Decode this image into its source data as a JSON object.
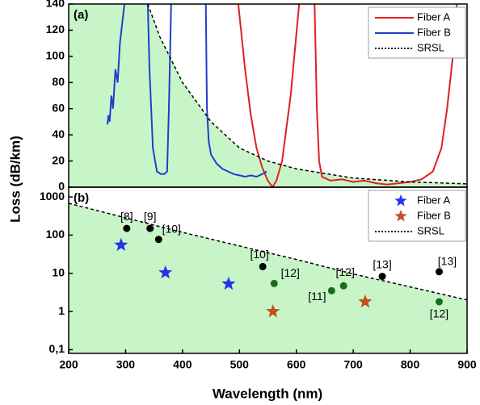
{
  "chart_data": [
    {
      "type": "line",
      "label": "(a)",
      "ylabel": "Loss (dB/km)",
      "xlim": [
        200,
        900
      ],
      "ylim": [
        0,
        140
      ],
      "yticks": [
        0,
        20,
        40,
        60,
        80,
        100,
        120,
        140
      ],
      "legend": "top-right",
      "series": [
        {
          "name": "Fiber A",
          "color": "#e02020",
          "style": "solid",
          "x": [
            498,
            510,
            520,
            530,
            540,
            550,
            558,
            565,
            575,
            590,
            605,
            618,
            632,
            636,
            640,
            645,
            660,
            680,
            700,
            720,
            740,
            760,
            780,
            800,
            820,
            840,
            855,
            865,
            875,
            882
          ],
          "values": [
            140,
            90,
            55,
            30,
            15,
            5,
            0,
            5,
            20,
            70,
            140,
            null,
            140,
            60,
            20,
            8,
            5,
            6,
            4,
            5,
            3,
            2,
            3,
            4,
            6,
            12,
            30,
            60,
            100,
            140
          ]
        },
        {
          "name": "Fiber B",
          "color": "#1f3fcc",
          "style": "solid",
          "x": [
            268,
            270,
            272,
            275,
            278,
            282,
            286,
            290,
            294,
            298,
            320,
            339,
            342,
            348,
            355,
            362,
            368,
            373,
            376,
            380,
            410,
            441,
            443,
            446,
            450,
            460,
            470,
            480,
            490,
            500,
            510,
            520,
            530,
            540,
            548
          ],
          "values": [
            48,
            55,
            50,
            70,
            60,
            90,
            80,
            110,
            125,
            140,
            null,
            140,
            90,
            30,
            12,
            10,
            10,
            12,
            60,
            140,
            null,
            140,
            60,
            35,
            25,
            18,
            14,
            12,
            10,
            9,
            8,
            9,
            8,
            10,
            12
          ]
        },
        {
          "name": "SRSL",
          "color": "#000000",
          "style": "dashed",
          "fill": "#c8f5c8",
          "x": [
            339,
            360,
            400,
            450,
            500,
            550,
            600,
            700,
            800,
            900
          ],
          "values": [
            140,
            115,
            80,
            50,
            30,
            20,
            14,
            7,
            4,
            2.5
          ]
        }
      ]
    },
    {
      "type": "scatter",
      "label": "(b)",
      "xlabel": "Wavelength (nm)",
      "log_y": true,
      "xlim": [
        200,
        900
      ],
      "xticks": [
        200,
        300,
        400,
        500,
        600,
        700,
        800,
        900
      ],
      "ylim": [
        0.08,
        1800
      ],
      "yticks": [
        {
          "value": 0.1,
          "label": "0,1"
        },
        1,
        10,
        100,
        1000
      ],
      "legend": "top-right",
      "series": [
        {
          "name": "Fiber A",
          "color": "#2233ee",
          "marker": "star",
          "x": [
            292,
            370,
            481
          ],
          "values": [
            55,
            10.4,
            5.3
          ]
        },
        {
          "name": "Fiber B",
          "color": "#c0501e",
          "marker": "star",
          "x": [
            559,
            721
          ],
          "values": [
            1.0,
            1.8
          ]
        },
        {
          "name": "SRSL",
          "color": "#000000",
          "marker": "dashed-line",
          "fill": "#c8f5c8",
          "x": [
            200,
            300,
            400,
            500,
            600,
            700,
            800,
            900
          ],
          "values": [
            680,
            283,
            118,
            52,
            23,
            9.6,
            4.4,
            2.0
          ]
        }
      ],
      "references": {
        "x": [
          302,
          343,
          358,
          541,
          561,
          662,
          683,
          751,
          851,
          851
        ],
        "values": [
          150,
          150,
          77,
          15,
          5.4,
          3.5,
          4.7,
          8.3,
          11,
          1.8
        ],
        "labels": [
          "[8]",
          "[9]",
          "[10]",
          "[10]",
          "[12]",
          "[11]",
          "[12]",
          "[13]",
          "[13]",
          "[12]"
        ],
        "colors": [
          "#000000",
          "#000000",
          "#000000",
          "#000000",
          "#1a6b1a",
          "#1a6b1a",
          "#1a6b1a",
          "#000000",
          "#000000",
          "#1a6b1a"
        ]
      }
    }
  ]
}
